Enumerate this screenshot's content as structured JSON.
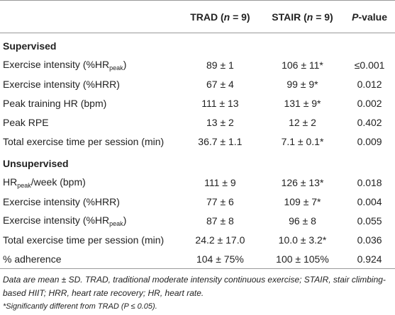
{
  "header": {
    "label": "",
    "columns": [
      [
        "TRAD (",
        "n",
        " = 9)"
      ],
      [
        "STAIR (",
        "n",
        " = 9)"
      ],
      [
        "",
        "P",
        "-value"
      ]
    ]
  },
  "sections": [
    {
      "title": "Supervised",
      "rows": [
        {
          "label": [
            "Exercise intensity (%HR",
            "peak",
            ")"
          ],
          "cells": [
            "89 ± 1",
            "106 ± 11*",
            "≤0.001"
          ]
        },
        {
          "label": "Exercise intensity (%HRR)",
          "cells": [
            "67 ± 4",
            "99 ± 9*",
            "0.012"
          ]
        },
        {
          "label": "Peak training HR (bpm)",
          "cells": [
            "111 ± 13",
            "131 ± 9*",
            "0.002"
          ]
        },
        {
          "label": "Peak RPE",
          "cells": [
            "13 ± 2",
            "12 ± 2",
            "0.402"
          ]
        },
        {
          "label": "Total exercise time per session (min)",
          "cells": [
            "36.7 ± 1.1",
            "7.1 ± 0.1*",
            "0.009"
          ]
        }
      ]
    },
    {
      "title": "Unsupervised",
      "rows": [
        {
          "label": [
            "HR",
            "peak",
            "/week (bpm)"
          ],
          "cells": [
            "111 ± 9",
            "126 ± 13*",
            "0.018"
          ]
        },
        {
          "label": "Exercise intensity (%HRR)",
          "cells": [
            "77 ± 6",
            "109 ± 7*",
            "0.004"
          ]
        },
        {
          "label": [
            "Exercise intensity (%HR",
            "peak",
            ")"
          ],
          "cells": [
            "87 ± 8",
            "96 ± 8",
            "0.055"
          ]
        },
        {
          "label": "Total exercise time per session (min)",
          "cells": [
            "24.2 ± 17.0",
            "10.0 ± 3.2*",
            "0.036"
          ]
        },
        {
          "label": "% adherence",
          "cells": [
            "104 ± 75%",
            "100 ± 105%",
            "0.924"
          ]
        }
      ]
    }
  ],
  "footnotes": [
    "Data are mean ± SD. TRAD, traditional moderate intensity continuous exercise; STAIR, stair climbing-based HIIT; HRR, heart rate recovery; HR, heart rate.",
    "*Significantly different from TRAD (P ≤ 0.05)."
  ]
}
